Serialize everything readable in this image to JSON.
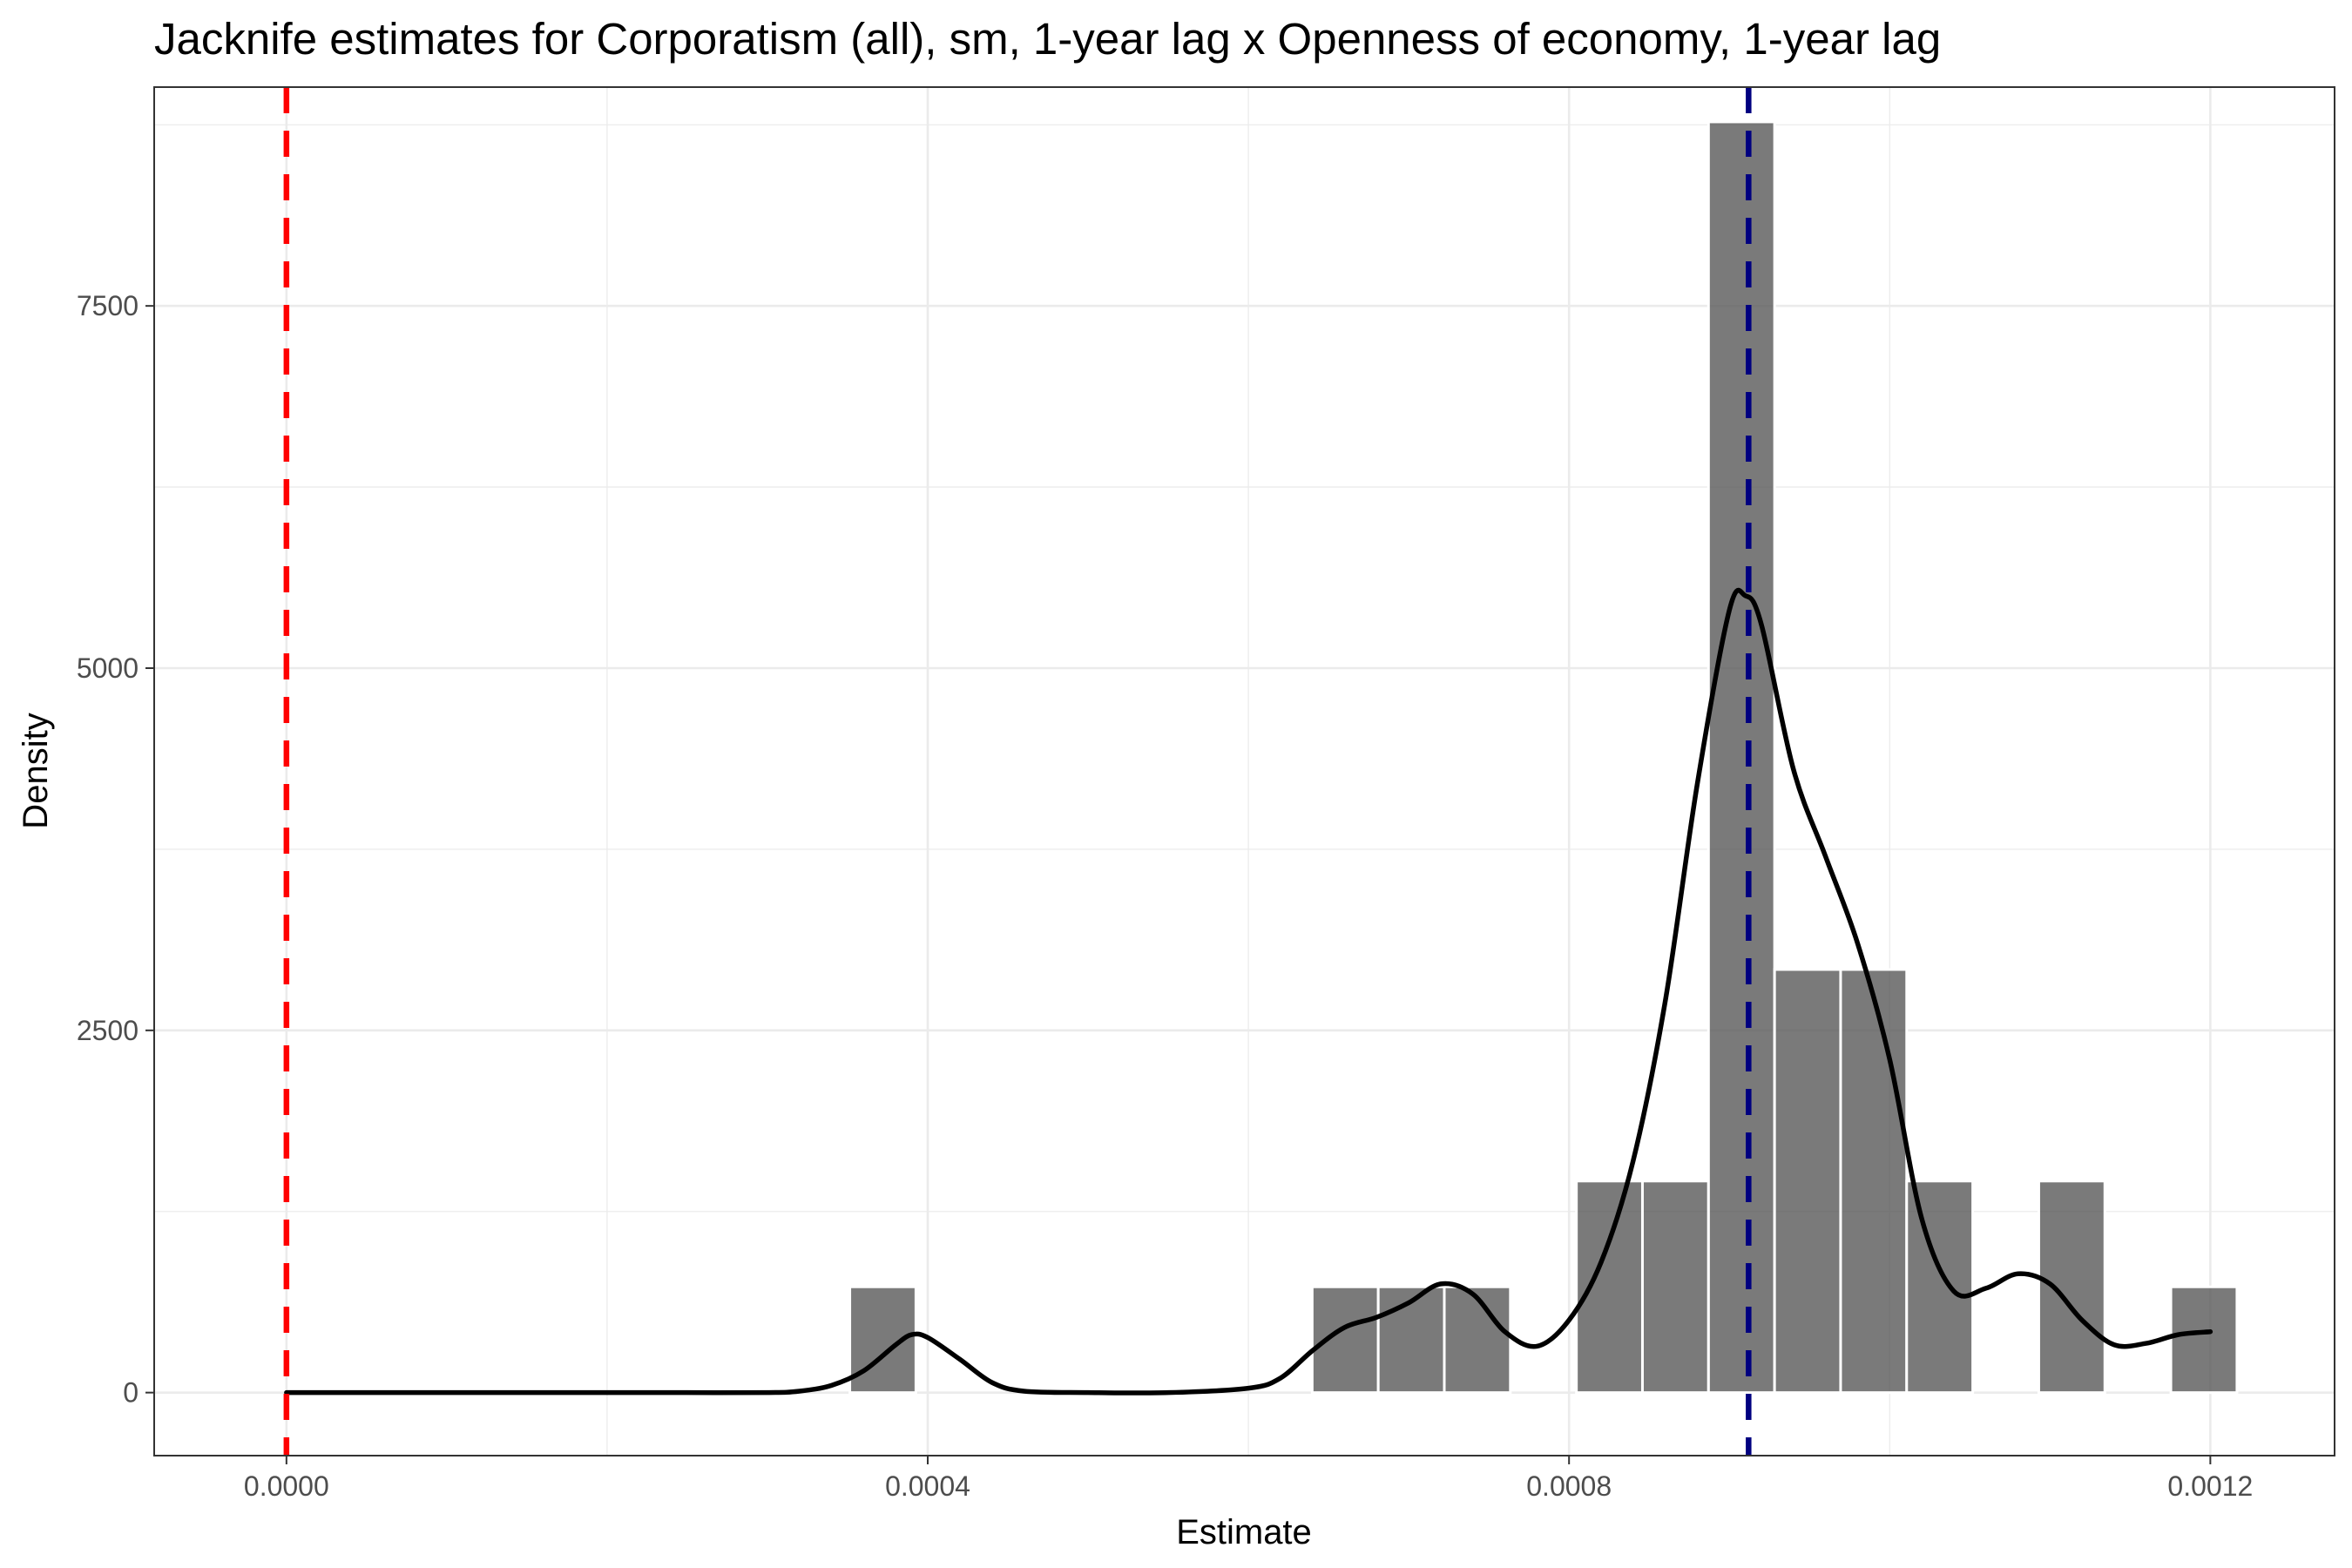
{
  "chart_data": {
    "type": "bar",
    "title": "Jacknife estimates for Corporatism (all), sm, 1-year lag x Openness of economy, 1-year lag",
    "xlabel": "Estimate",
    "ylabel": "Density",
    "xlim": [
      -8.25e-05,
      0.0012775
    ],
    "ylim": [
      -435,
      9010
    ],
    "x_ticks": [
      0,
      0.0004,
      0.0008,
      0.0012
    ],
    "x_tick_labels": [
      "0.0000",
      "0.0004",
      "0.0008",
      "0.0012"
    ],
    "y_ticks": [
      0,
      2500,
      5000,
      7500
    ],
    "y_tick_labels": [
      "0",
      "2500",
      "5000",
      "7500"
    ],
    "grid": true,
    "bin_width": 4.12e-05,
    "histogram": {
      "bin_centers": [
        1.2e-06,
        4.24e-05,
        8.36e-05,
        0.0001248,
        0.000166,
        0.0002072,
        0.0002484,
        0.0002896,
        0.0003308,
        0.000372,
        0.0004132,
        0.0004544,
        0.0004956,
        0.0005368,
        0.000578,
        0.0006192,
        0.0006604,
        0.0007016,
        0.0007428,
        0.000784,
        0.0008252,
        0.0008664,
        0.0009076,
        0.0009488,
        0.00099,
        0.0010312,
        0.0010724,
        0.0011136,
        0.0011548,
        0.001196
      ],
      "density": [
        0,
        0,
        0,
        0,
        0,
        0,
        0,
        0,
        0,
        730,
        0,
        0,
        0,
        0,
        0,
        0,
        730,
        730,
        730,
        0,
        1460,
        1460,
        8770,
        2920,
        2920,
        1460,
        0,
        1460,
        0,
        730
      ],
      "fill": "#595959"
    },
    "density_curve": {
      "x": [
        0,
        5e-05,
        0.0001,
        0.00015,
        0.0002,
        0.00025,
        0.0003,
        0.00032,
        0.00034,
        0.00036,
        0.00038,
        0.00039,
        0.0004,
        0.00042,
        0.00044,
        0.00046,
        0.0005,
        0.00055,
        0.0006,
        0.00062,
        0.00064,
        0.00066,
        0.00068,
        0.0007,
        0.00072,
        0.00074,
        0.00076,
        0.00078,
        0.0008,
        0.00082,
        0.00084,
        0.00086,
        0.00088,
        0.0009,
        0.00091,
        0.00092,
        0.00094,
        0.00096,
        0.00098,
        0.001,
        0.00102,
        0.00104,
        0.00106,
        0.00108,
        0.0011,
        0.00112,
        0.00114,
        0.00116,
        0.00118,
        0.0012
      ],
      "y": [
        0,
        0,
        0,
        0,
        0,
        0,
        0,
        10,
        50,
        150,
        330,
        400,
        380,
        230,
        70,
        10,
        0,
        0,
        30,
        100,
        290,
        450,
        520,
        620,
        750,
        680,
        420,
        320,
        500,
        900,
        1600,
        2700,
        4200,
        5400,
        5500,
        5300,
        4300,
        3700,
        3100,
        2300,
        1200,
        700,
        720,
        820,
        750,
        500,
        330,
        340,
        400,
        420
      ],
      "color": "#000000"
    },
    "vlines": [
      {
        "x": 0,
        "color": "#ff0000",
        "style": "dashed"
      },
      {
        "x": 0.000912,
        "color": "#000080",
        "style": "dashed"
      }
    ]
  }
}
